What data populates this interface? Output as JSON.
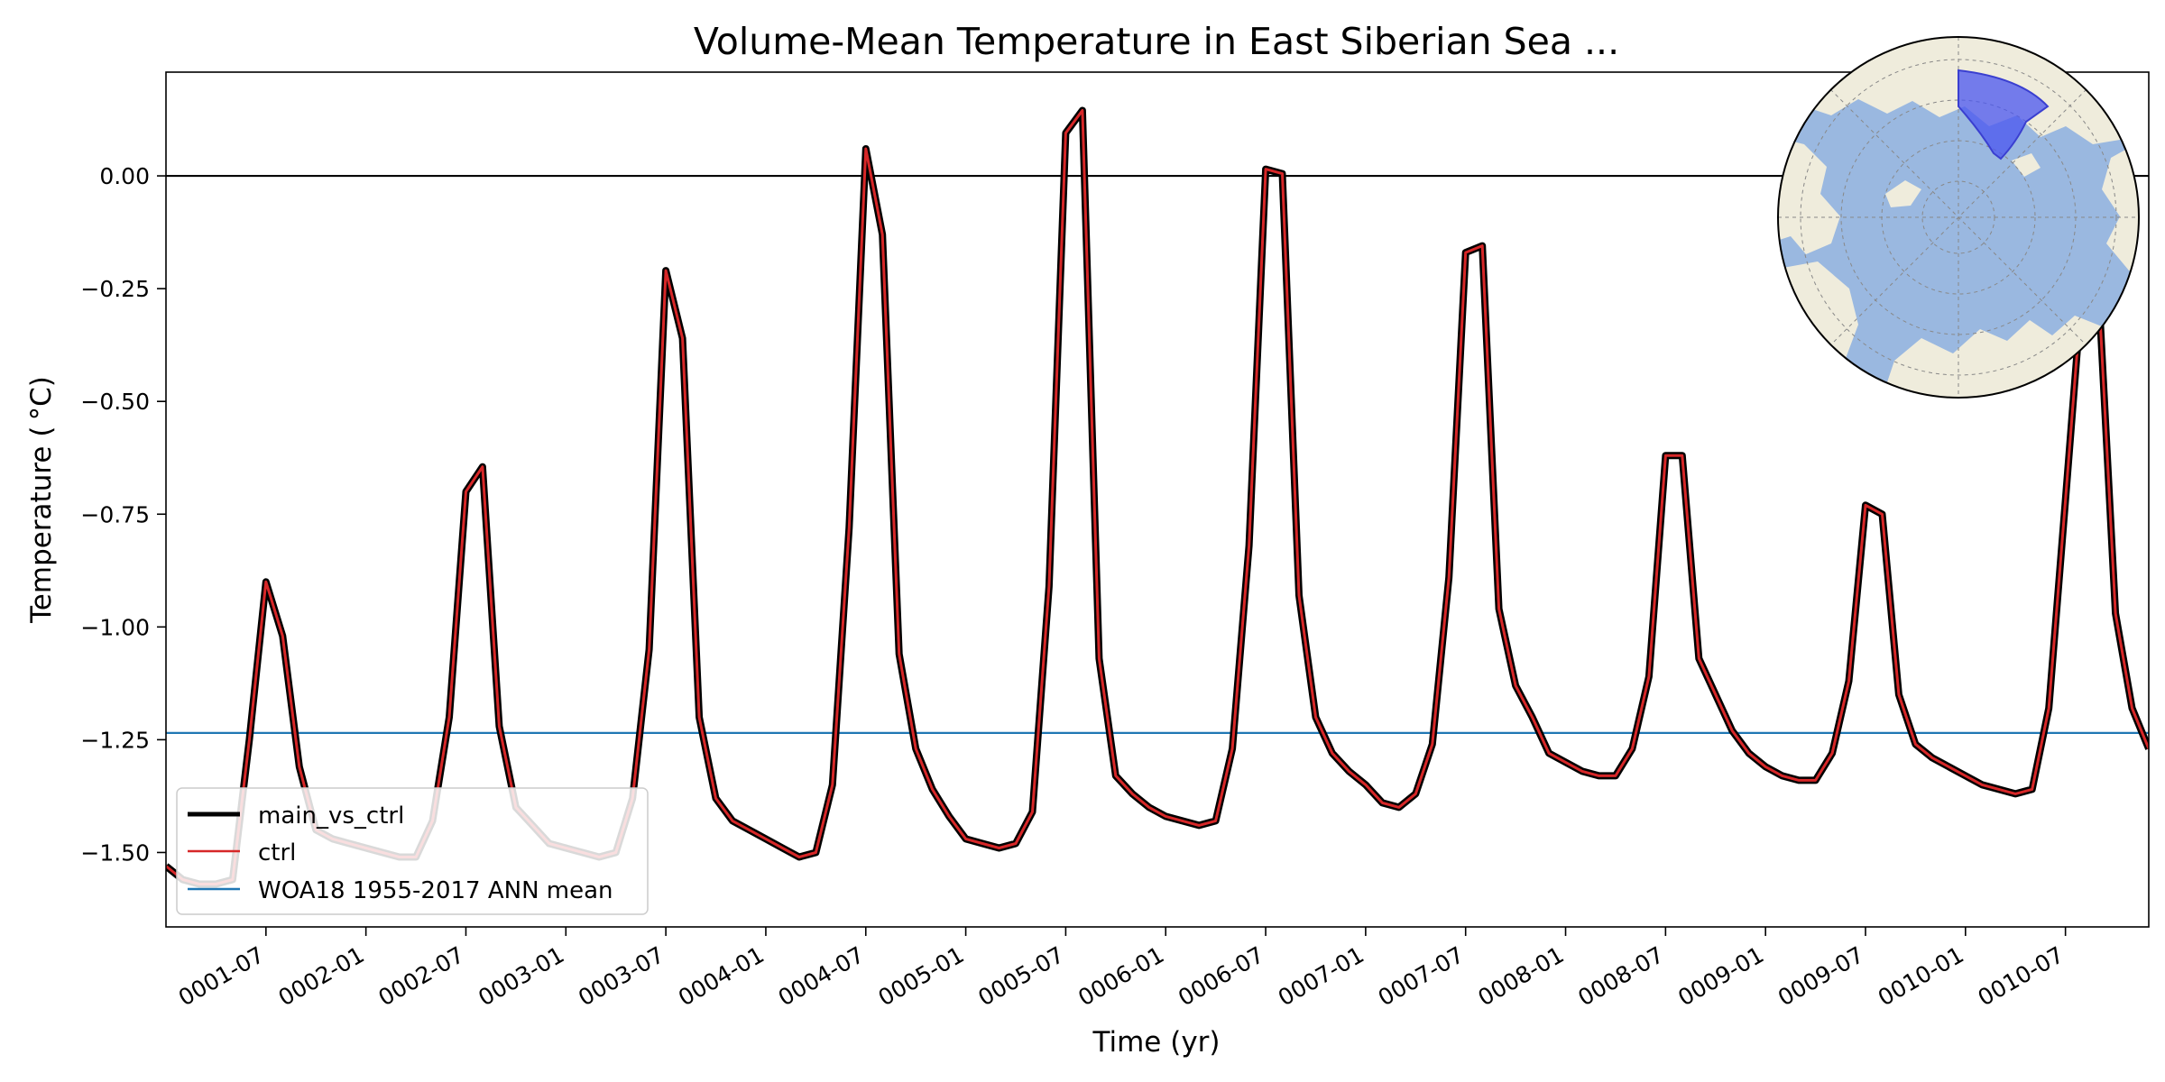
{
  "chart_data": {
    "type": "line",
    "title": "Volume-Mean Temperature in East Siberian Sea ...",
    "xlabel": "Time (yr)",
    "ylabel": "Temperature ($^\\circ$C)",
    "ylabel_display": "Temperature ( °C)",
    "xlim": [
      0,
      119
    ],
    "ylim": [
      -1.665,
      0.23
    ],
    "yticks": [
      {
        "value": 0.0,
        "label": "0.00"
      },
      {
        "value": -0.25,
        "label": "−0.25"
      },
      {
        "value": -0.5,
        "label": "−0.50"
      },
      {
        "value": -0.75,
        "label": "−0.75"
      },
      {
        "value": -1.0,
        "label": "−1.00"
      },
      {
        "value": -1.25,
        "label": "−1.25"
      },
      {
        "value": -1.5,
        "label": "−1.50"
      }
    ],
    "xticks": [
      {
        "value": 6,
        "label": "0001-07"
      },
      {
        "value": 12,
        "label": "0002-01"
      },
      {
        "value": 18,
        "label": "0002-07"
      },
      {
        "value": 24,
        "label": "0003-01"
      },
      {
        "value": 30,
        "label": "0003-07"
      },
      {
        "value": 36,
        "label": "0004-01"
      },
      {
        "value": 42,
        "label": "0004-07"
      },
      {
        "value": 48,
        "label": "0005-01"
      },
      {
        "value": 54,
        "label": "0005-07"
      },
      {
        "value": 60,
        "label": "0006-01"
      },
      {
        "value": 66,
        "label": "0006-07"
      },
      {
        "value": 72,
        "label": "0007-01"
      },
      {
        "value": 78,
        "label": "0007-07"
      },
      {
        "value": 84,
        "label": "0008-01"
      },
      {
        "value": 90,
        "label": "0008-07"
      },
      {
        "value": 96,
        "label": "0009-01"
      },
      {
        "value": 102,
        "label": "0009-07"
      },
      {
        "value": 108,
        "label": "0010-01"
      },
      {
        "value": 114,
        "label": "0010-07"
      }
    ],
    "zero_line": 0.0,
    "reference": {
      "name": "WOA18 1955-2017 ANN mean",
      "value": -1.235,
      "color": "#1f77b4"
    },
    "series": [
      {
        "name": "main_vs_ctrl",
        "color": "#000000",
        "x": [
          0,
          1,
          2,
          3,
          4,
          5,
          6,
          7,
          8,
          9,
          10,
          11,
          12,
          13,
          14,
          15,
          16,
          17,
          18,
          19,
          20,
          21,
          22,
          23,
          24,
          25,
          26,
          27,
          28,
          29,
          30,
          31,
          32,
          33,
          34,
          35,
          36,
          37,
          38,
          39,
          40,
          41,
          42,
          43,
          44,
          45,
          46,
          47,
          48,
          49,
          50,
          51,
          52,
          53,
          54,
          55,
          56,
          57,
          58,
          59,
          60,
          61,
          62,
          63,
          64,
          65,
          66,
          67,
          68,
          69,
          70,
          71,
          72,
          73,
          74,
          75,
          76,
          77,
          78,
          79,
          80,
          81,
          82,
          83,
          84,
          85,
          86,
          87,
          88,
          89,
          90,
          91,
          92,
          93,
          94,
          95,
          96,
          97,
          98,
          99,
          100,
          101,
          102,
          103,
          104,
          105,
          106,
          107,
          108,
          109,
          110,
          111,
          112,
          113,
          114,
          115,
          116,
          117,
          118,
          119
        ],
        "values": [
          -1.53,
          -1.56,
          -1.57,
          -1.57,
          -1.56,
          -1.25,
          -0.9,
          -1.02,
          -1.31,
          -1.45,
          -1.47,
          -1.48,
          -1.49,
          -1.5,
          -1.51,
          -1.51,
          -1.43,
          -1.2,
          -0.7,
          -0.645,
          -1.22,
          -1.4,
          -1.44,
          -1.48,
          -1.49,
          -1.5,
          -1.51,
          -1.5,
          -1.38,
          -1.05,
          -0.21,
          -0.36,
          -1.2,
          -1.38,
          -1.43,
          -1.45,
          -1.47,
          -1.49,
          -1.51,
          -1.5,
          -1.35,
          -0.78,
          0.06,
          -0.13,
          -1.06,
          -1.27,
          -1.36,
          -1.42,
          -1.47,
          -1.48,
          -1.49,
          -1.48,
          -1.41,
          -0.91,
          0.095,
          0.145,
          -1.07,
          -1.33,
          -1.37,
          -1.4,
          -1.42,
          -1.43,
          -1.44,
          -1.43,
          -1.27,
          -0.82,
          0.015,
          0.005,
          -0.93,
          -1.2,
          -1.28,
          -1.32,
          -1.35,
          -1.39,
          -1.4,
          -1.37,
          -1.26,
          -0.89,
          -0.17,
          -0.155,
          -0.96,
          -1.13,
          -1.2,
          -1.28,
          -1.3,
          -1.32,
          -1.33,
          -1.33,
          -1.27,
          -1.11,
          -0.62,
          -0.62,
          -1.07,
          -1.15,
          -1.23,
          -1.28,
          -1.31,
          -1.33,
          -1.34,
          -1.34,
          -1.28,
          -1.12,
          -0.73,
          -0.75,
          -1.15,
          -1.26,
          -1.29,
          -1.31,
          -1.33,
          -1.35,
          -1.36,
          -1.37,
          -1.36,
          -1.18,
          -0.72,
          -0.25,
          -0.26,
          -0.97,
          -1.18,
          -1.27
        ]
      },
      {
        "name": "ctrl",
        "color": "#d62728",
        "same_as": "main_vs_ctrl"
      }
    ],
    "legend": {
      "placement": "lower-left",
      "entries": [
        {
          "label": "main_vs_ctrl",
          "color": "#000000"
        },
        {
          "label": "ctrl",
          "color": "#d62728"
        },
        {
          "label": "WOA18 1955-2017 ANN mean",
          "color": "#1f77b4"
        }
      ]
    },
    "inset": {
      "type": "map",
      "projection": "north-polar-stereographic",
      "region": "East Siberian Sea",
      "placement": "top-right",
      "colors": {
        "ocean": "#9ab8e0",
        "land": "#efecdc",
        "region": "#4a55f0"
      }
    }
  }
}
